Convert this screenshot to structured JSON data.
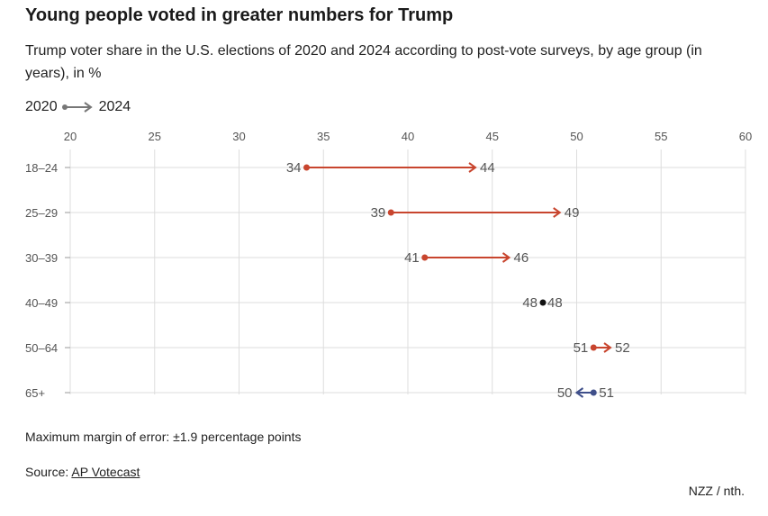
{
  "header": {
    "title": "Young people voted in greater numbers for Trump",
    "subtitle": "Trump voter share in the U.S. elections of 2020 and 2024 according to post-vote surveys, by age group (in years), in %"
  },
  "legend": {
    "from": "2020",
    "to": "2024"
  },
  "footer": {
    "note": "Maximum margin of error: ±1.9 percentage points",
    "source_prefix": "Source: ",
    "source_link": "AP Votecast",
    "credit": "NZZ / nth."
  },
  "colors": {
    "increase": "#c8452e",
    "decrease": "#3f4f8a",
    "unchanged": "#111111",
    "grid": "#dddddd",
    "legend": "#777777"
  },
  "chart_data": {
    "type": "dumbbell-arrow",
    "xlim": [
      20,
      60
    ],
    "xticks": [
      20,
      25,
      30,
      35,
      40,
      45,
      50,
      55,
      60
    ],
    "categories": [
      "18–24",
      "25–29",
      "30–39",
      "40–49",
      "50–64",
      "65+"
    ],
    "series": [
      {
        "name": "2020",
        "values": [
          34,
          39,
          41,
          48,
          51,
          51
        ]
      },
      {
        "name": "2024",
        "values": [
          44,
          49,
          46,
          48,
          52,
          50
        ]
      }
    ],
    "grid": true
  }
}
